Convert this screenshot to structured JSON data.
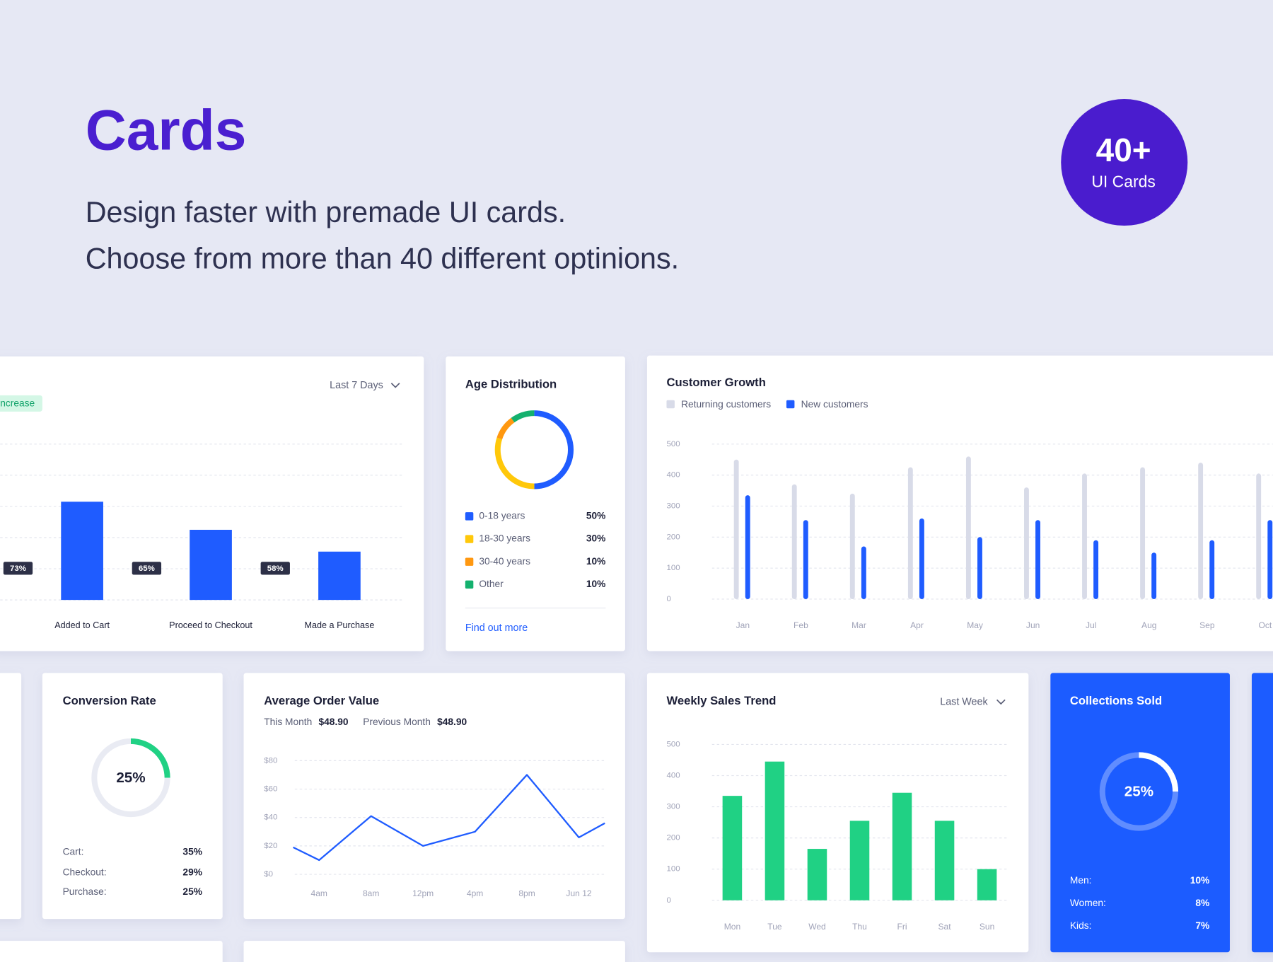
{
  "header": {
    "title": "Cards",
    "lines": [
      "Design faster with premade UI cards.",
      "Choose from more than 40 different optinions."
    ],
    "badge_number": "40+",
    "badge_label": "UI Cards"
  },
  "chart_data": [
    {
      "type": "bar",
      "badge": "ncrease",
      "filter": "Last 7 Days",
      "categories": [
        "Added to Cart",
        "Proceed to Checkout",
        "Made a Purchase"
      ],
      "values": [
        63,
        45,
        31
      ],
      "rates": [
        "73%",
        "65%",
        "58%"
      ],
      "color": "#1f5cff",
      "ylim": [
        0,
        100
      ]
    },
    {
      "type": "pie",
      "title": "Age Distribution",
      "categories": [
        "0-18 years",
        "18-30 years",
        "30-40 years",
        "Other"
      ],
      "values": [
        50,
        30,
        10,
        10
      ],
      "value_labels": [
        "50%",
        "30%",
        "10%",
        "10%"
      ],
      "colors": [
        "#1f5cff",
        "#ffc80a",
        "#ff9810",
        "#14b16e"
      ],
      "link": "Find out more"
    },
    {
      "type": "grouped_bar",
      "title": "Customer Growth",
      "categories": [
        "Jan",
        "Feb",
        "Mar",
        "Apr",
        "May",
        "Jun",
        "Jul",
        "Aug",
        "Sep",
        "Oct"
      ],
      "series": [
        {
          "name": "Returning customers",
          "color": "#d8dbe8",
          "values": [
            450,
            370,
            340,
            425,
            460,
            360,
            405,
            425,
            440,
            405
          ]
        },
        {
          "name": "New customers",
          "color": "#1f5cff",
          "values": [
            335,
            255,
            170,
            260,
            200,
            255,
            190,
            150,
            190,
            255
          ]
        }
      ],
      "ylim": [
        0,
        500
      ],
      "yticks": [
        0,
        100,
        200,
        300,
        400,
        500
      ],
      "grid": true
    },
    {
      "type": "donut",
      "title": "Conversion Rate",
      "value": 25,
      "value_label": "25%",
      "color": "#20d184",
      "rows": [
        {
          "label": "Cart:",
          "value": "35%"
        },
        {
          "label": "Checkout:",
          "value": "29%"
        },
        {
          "label": "Purchase:",
          "value": "25%"
        }
      ]
    },
    {
      "type": "line",
      "title": "Average Order Value",
      "stats": [
        {
          "label": "This Month",
          "value": "$48.90"
        },
        {
          "label": "Previous Month",
          "value": "$48.90"
        }
      ],
      "x": [
        -0.5,
        0,
        1,
        2,
        3,
        4,
        5,
        5.5
      ],
      "values": [
        19,
        10,
        41,
        20,
        30,
        70,
        26,
        36
      ],
      "color": "#1f5cff",
      "xlim": [
        -0.5,
        5.5
      ],
      "xticks": [
        {
          "value": 0,
          "label": "4am"
        },
        {
          "value": 1,
          "label": "8am"
        },
        {
          "value": 2,
          "label": "12pm"
        },
        {
          "value": 3,
          "label": "4pm"
        },
        {
          "value": 4,
          "label": "8pm"
        },
        {
          "value": 5,
          "label": "Jun 12"
        }
      ],
      "ylim": [
        0,
        80
      ],
      "yticks": [
        {
          "value": 0,
          "label": "$0"
        },
        {
          "value": 20,
          "label": "$20"
        },
        {
          "value": 40,
          "label": "$40"
        },
        {
          "value": 60,
          "label": "$60"
        },
        {
          "value": 80,
          "label": "$80"
        }
      ],
      "grid": true
    },
    {
      "type": "bar",
      "title": "Weekly Sales Trend",
      "filter": "Last Week",
      "categories": [
        "Mon",
        "Tue",
        "Wed",
        "Thu",
        "Fri",
        "Sat",
        "Sun"
      ],
      "values": [
        335,
        445,
        165,
        255,
        345,
        255,
        100
      ],
      "color": "#20d184",
      "ylim": [
        0,
        500
      ],
      "yticks": [
        0,
        100,
        200,
        300,
        400,
        500
      ],
      "grid": true
    },
    {
      "type": "donut",
      "title": "Collections Sold",
      "value": 25,
      "value_label": "25%",
      "color": "#ffffff",
      "rows": [
        {
          "label": "Men:",
          "value": "10%"
        },
        {
          "label": "Women:",
          "value": "8%"
        },
        {
          "label": "Kids:",
          "value": "7%"
        }
      ]
    }
  ]
}
